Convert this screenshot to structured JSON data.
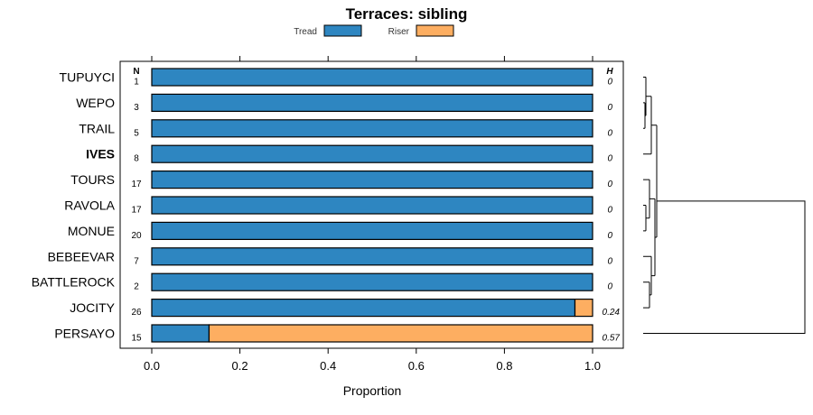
{
  "chart_data": {
    "type": "bar",
    "orientation": "horizontal",
    "stacked": true,
    "title": "Terraces: sibling",
    "xlabel": "Proportion",
    "xlim": [
      0,
      1
    ],
    "x_ticks": [
      "0.0",
      "0.2",
      "0.4",
      "0.6",
      "0.8",
      "1.0"
    ],
    "n_header": "N",
    "h_header": "H",
    "series": [
      {
        "name": "Tread",
        "color": "#2e86c1"
      },
      {
        "name": "Riser",
        "color": "#fdae61"
      }
    ],
    "rows": [
      {
        "label": "TUPUYCI",
        "n": "1",
        "h": "0",
        "tread": 1.0,
        "bold": false
      },
      {
        "label": "WEPO",
        "n": "3",
        "h": "0",
        "tread": 1.0,
        "bold": false
      },
      {
        "label": "TRAIL",
        "n": "5",
        "h": "0",
        "tread": 1.0,
        "bold": false
      },
      {
        "label": "IVES",
        "n": "8",
        "h": "0",
        "tread": 1.0,
        "bold": true
      },
      {
        "label": "TOURS",
        "n": "17",
        "h": "0",
        "tread": 1.0,
        "bold": false
      },
      {
        "label": "RAVOLA",
        "n": "17",
        "h": "0",
        "tread": 1.0,
        "bold": false
      },
      {
        "label": "MONUE",
        "n": "20",
        "h": "0",
        "tread": 1.0,
        "bold": false
      },
      {
        "label": "BEBEEVAR",
        "n": "7",
        "h": "0",
        "tread": 1.0,
        "bold": false
      },
      {
        "label": "BATTLEROCK",
        "n": "2",
        "h": "0",
        "tread": 1.0,
        "bold": false
      },
      {
        "label": "JOCITY",
        "n": "26",
        "h": "0.24",
        "tread": 0.96,
        "bold": false
      },
      {
        "label": "PERSAYO",
        "n": "15",
        "h": "0.57",
        "tread": 0.13,
        "bold": false
      }
    ]
  }
}
